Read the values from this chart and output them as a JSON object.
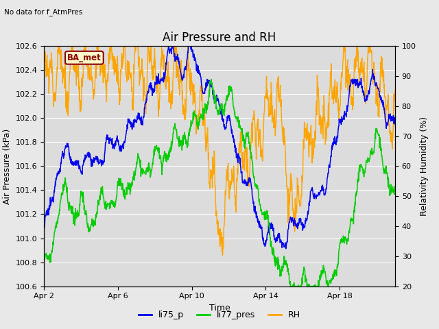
{
  "title": "Air Pressure and RH",
  "subtitle": "No data for f_AtmPres",
  "xlabel": "Time",
  "ylabel_left": "Air Pressure (kPa)",
  "ylabel_right": "Relativity Humidity (%)",
  "ylim_left": [
    100.6,
    102.6
  ],
  "ylim_right": [
    20,
    100
  ],
  "yticks_left": [
    100.6,
    100.8,
    101.0,
    101.2,
    101.4,
    101.6,
    101.8,
    102.0,
    102.2,
    102.4,
    102.6
  ],
  "yticks_right": [
    20,
    30,
    40,
    50,
    60,
    70,
    80,
    90,
    100
  ],
  "xtick_positions": [
    0,
    4,
    8,
    12,
    16
  ],
  "xtick_labels": [
    "Apr 2",
    "Apr 6",
    "Apr 10",
    "Apr 14",
    "Apr 18"
  ],
  "xlim": [
    0,
    19
  ],
  "legend_labels": [
    "li75_p",
    "li77_pres",
    "RH"
  ],
  "line_colors": [
    "#0000EE",
    "#00CC00",
    "#FFA500"
  ],
  "box_label": "BA_met",
  "box_facecolor": "#FFFFCC",
  "box_edgecolor": "#8B0000",
  "fig_facecolor": "#E8E8E8",
  "plot_bg_color": "#DCDCDC",
  "grid_color": "#FFFFFF",
  "title_fontsize": 12,
  "label_fontsize": 9,
  "tick_fontsize": 8,
  "legend_fontsize": 9
}
